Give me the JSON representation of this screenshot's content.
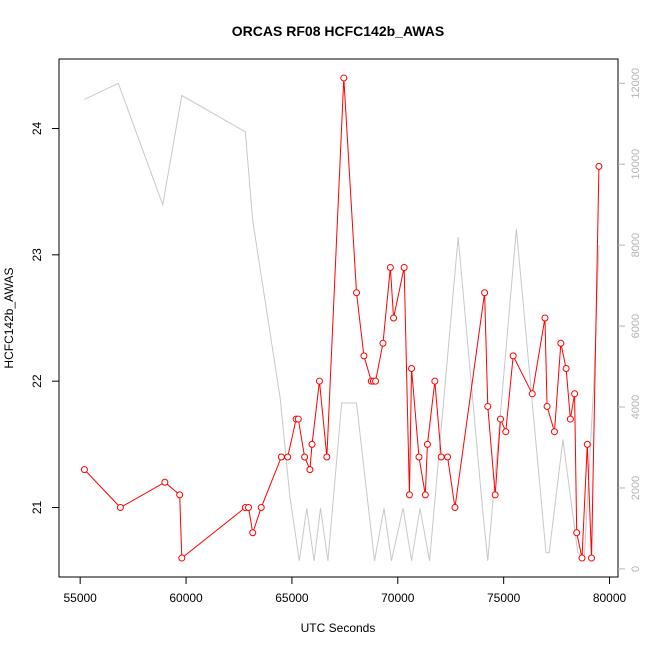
{
  "chart_data": {
    "type": "line",
    "title": "ORCAS RF08 HCFC142b_AWAS",
    "xlabel": "UTC Seconds",
    "ylabel": "HCFC142b_AWAS",
    "xlim": [
      54000,
      80400
    ],
    "ylim": [
      20.45,
      24.55
    ],
    "y2lim": [
      -200,
      12600
    ],
    "x_ticks": [
      "55000",
      "60000",
      "65000",
      "70000",
      "75000",
      "80000"
    ],
    "y_ticks": [
      "21",
      "22",
      "23",
      "24"
    ],
    "y2_ticks": [
      "0",
      "2000",
      "4000",
      "6000",
      "8000",
      "10000",
      "12000"
    ],
    "grid": false,
    "series": [
      {
        "color": "#ff0000",
        "marker": "open-circle",
        "x": [
          55200,
          56900,
          59000,
          59700,
          59800,
          62800,
          62950,
          63150,
          63550,
          64500,
          64800,
          65200,
          65300,
          65600,
          65850,
          65950,
          66300,
          66650,
          67450,
          68050,
          68400,
          68750,
          68850,
          68950,
          69300,
          69650,
          69800,
          70300,
          70550,
          70650,
          71000,
          71300,
          71400,
          71750,
          72050,
          72350,
          72700,
          74100,
          74250,
          74600,
          74850,
          75100,
          75450,
          76350,
          76950,
          77050,
          77400,
          77700,
          77950,
          78150,
          78350,
          78450,
          78700,
          78950,
          79150,
          79500
        ],
        "values": [
          21.3,
          21.0,
          21.2,
          21.1,
          20.6,
          21.0,
          21.0,
          20.8,
          21.0,
          21.4,
          21.4,
          21.7,
          21.7,
          21.4,
          21.3,
          21.5,
          22.0,
          21.4,
          24.4,
          22.7,
          22.2,
          22.0,
          22.0,
          22.0,
          22.3,
          22.9,
          22.5,
          22.9,
          21.1,
          22.1,
          21.4,
          21.1,
          21.5,
          22.0,
          21.4,
          21.4,
          21.0,
          22.7,
          21.8,
          21.1,
          21.7,
          21.6,
          22.2,
          21.9,
          22.5,
          21.8,
          21.6,
          22.3,
          22.1,
          21.7,
          21.9,
          20.8,
          20.6,
          21.5,
          20.6,
          23.7
        ]
      },
      {
        "color": "#c8c8c8",
        "axis": "right",
        "x": [
          55200,
          56800,
          58900,
          59800,
          62800,
          63150,
          64450,
          64900,
          65350,
          65700,
          66050,
          66350,
          66700,
          67350,
          68050,
          68900,
          69350,
          69700,
          70250,
          70650,
          71050,
          71500,
          72850,
          74000,
          74250,
          75600,
          77000,
          77150,
          77800,
          78500,
          78800,
          79250,
          79500
        ],
        "values": [
          11600,
          12000,
          9000,
          11700,
          10800,
          8600,
          4200,
          1800,
          200,
          1500,
          200,
          1500,
          200,
          4100,
          4100,
          200,
          1500,
          200,
          1500,
          200,
          1500,
          200,
          8200,
          1500,
          200,
          8400,
          400,
          400,
          3200,
          400,
          200,
          4500,
          8000
        ]
      }
    ]
  }
}
